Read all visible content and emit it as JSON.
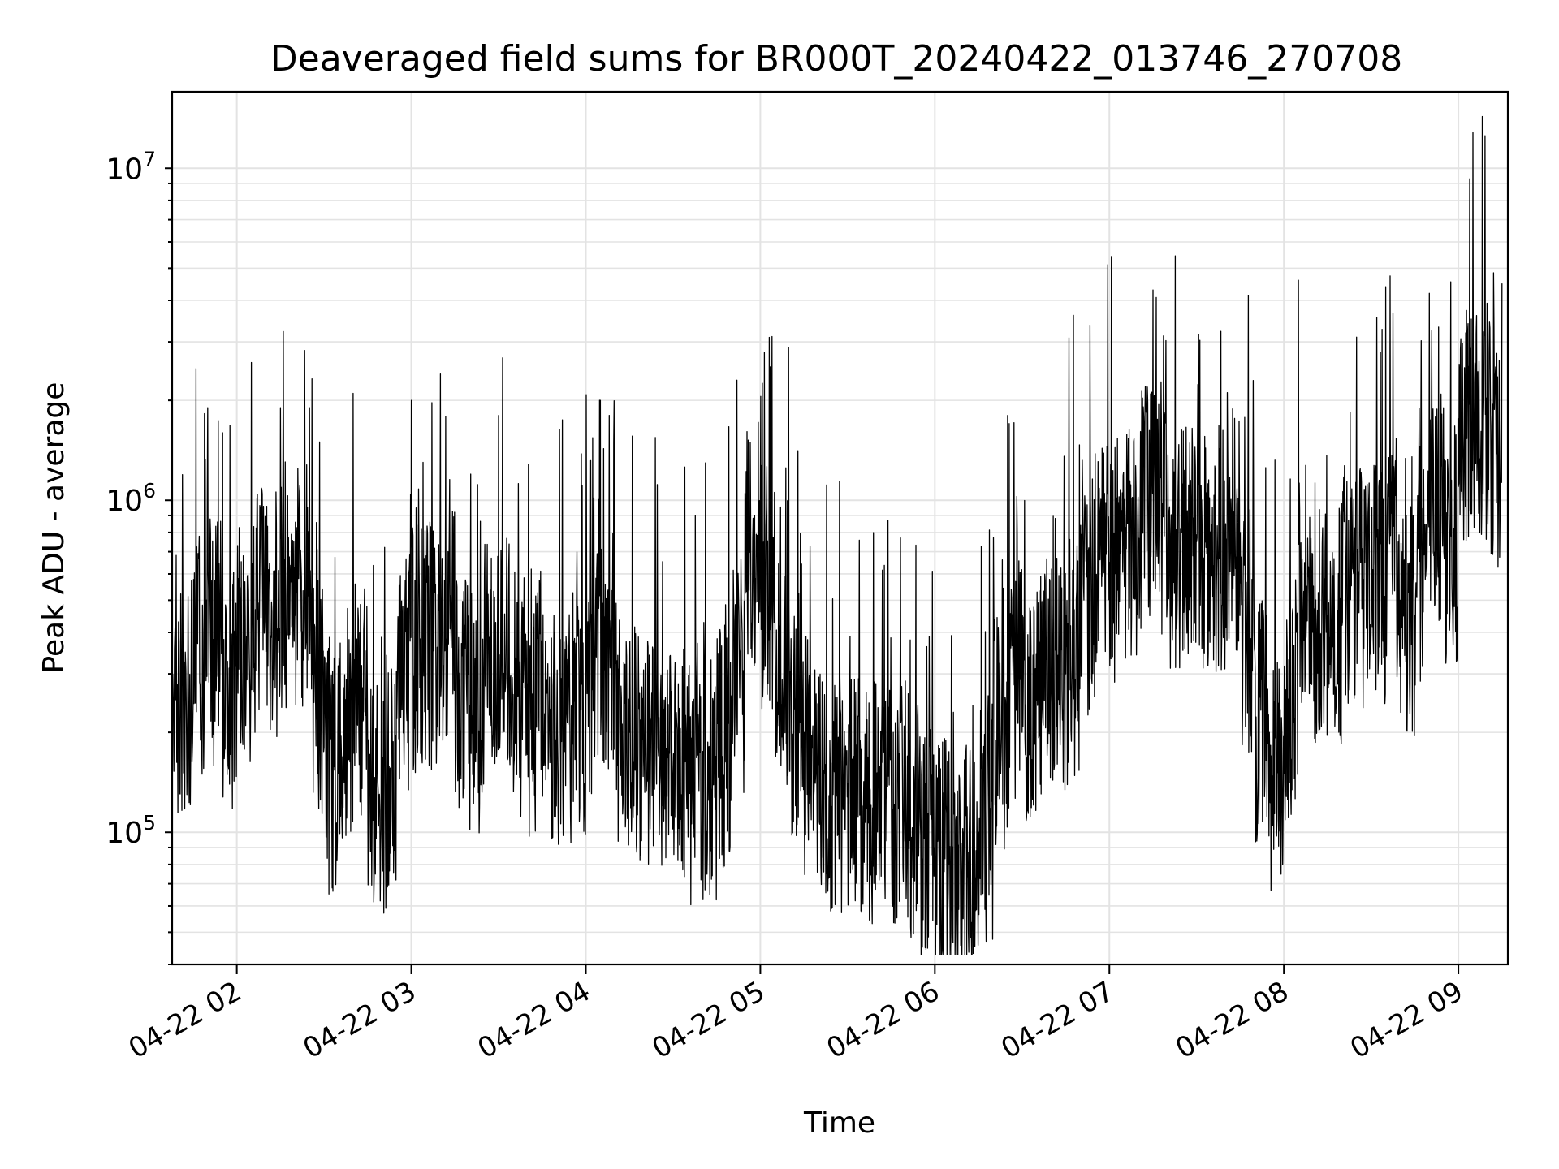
{
  "chart_data": {
    "type": "line",
    "title": "Deaveraged field sums for BR000T_20240422_013746_270708",
    "xlabel": "Time",
    "ylabel": "Peak ADU - average",
    "yscale": "log",
    "grid": true,
    "line_color": "#000000",
    "x_range": [
      "2024-04-22 01:37:46",
      "2024-04-22 09:17:00"
    ],
    "ylim": [
      40000,
      17000000
    ],
    "x_ticks": [
      {
        "t": "2024-04-22 02:00",
        "label": "04-22 02"
      },
      {
        "t": "2024-04-22 03:00",
        "label": "04-22 03"
      },
      {
        "t": "2024-04-22 04:00",
        "label": "04-22 04"
      },
      {
        "t": "2024-04-22 05:00",
        "label": "04-22 05"
      },
      {
        "t": "2024-04-22 06:00",
        "label": "04-22 06"
      },
      {
        "t": "2024-04-22 07:00",
        "label": "04-22 07"
      },
      {
        "t": "2024-04-22 08:00",
        "label": "04-22 08"
      },
      {
        "t": "2024-04-22 09:00",
        "label": "04-22 09"
      }
    ],
    "y_ticks": [
      {
        "value": 100000,
        "base": "10",
        "exp": "5"
      },
      {
        "value": 1000000,
        "base": "10",
        "exp": "6"
      },
      {
        "value": 10000000,
        "base": "10",
        "exp": "7"
      }
    ],
    "series": [
      {
        "points": [
          [
            "2024-04-22 01:38",
            300000
          ],
          [
            "2024-04-22 01:45",
            250000
          ],
          [
            "2024-04-22 01:50",
            1900000
          ],
          [
            "2024-04-22 01:55",
            280000
          ],
          [
            "2024-04-22 02:00",
            260000
          ],
          [
            "2024-04-22 02:05",
            2600000
          ],
          [
            "2024-04-22 02:10",
            350000
          ],
          [
            "2024-04-22 02:15",
            1900000
          ],
          [
            "2024-04-22 02:20",
            450000
          ],
          [
            "2024-04-22 02:25",
            1900000
          ],
          [
            "2024-04-22 02:30",
            180000
          ],
          [
            "2024-04-22 02:35",
            150000
          ],
          [
            "2024-04-22 02:40",
            2100000
          ],
          [
            "2024-04-22 02:45",
            180000
          ],
          [
            "2024-04-22 02:50",
            120000
          ],
          [
            "2024-04-22 02:55",
            220000
          ],
          [
            "2024-04-22 03:00",
            2000000
          ],
          [
            "2024-04-22 03:05",
            260000
          ],
          [
            "2024-04-22 03:10",
            2400000
          ],
          [
            "2024-04-22 03:15",
            300000
          ],
          [
            "2024-04-22 03:20",
            240000
          ],
          [
            "2024-04-22 03:25",
            230000
          ],
          [
            "2024-04-22 03:30",
            1800000
          ],
          [
            "2024-04-22 03:35",
            260000
          ],
          [
            "2024-04-22 03:40",
            280000
          ],
          [
            "2024-04-22 03:45",
            220000
          ],
          [
            "2024-04-22 03:50",
            210000
          ],
          [
            "2024-04-22 03:55",
            240000
          ],
          [
            "2024-04-22 04:00",
            220000
          ],
          [
            "2024-04-22 04:05",
            2000000
          ],
          [
            "2024-04-22 04:10",
            250000
          ],
          [
            "2024-04-22 04:15",
            200000
          ],
          [
            "2024-04-22 04:20",
            180000
          ],
          [
            "2024-04-22 04:25",
            170000
          ],
          [
            "2024-04-22 04:30",
            150000
          ],
          [
            "2024-04-22 04:35",
            160000
          ],
          [
            "2024-04-22 04:40",
            140000
          ],
          [
            "2024-04-22 04:45",
            170000
          ],
          [
            "2024-04-22 04:50",
            250000
          ],
          [
            "2024-04-22 04:55",
            700000
          ],
          [
            "2024-04-22 05:00",
            1000000
          ],
          [
            "2024-04-22 05:05",
            500000
          ],
          [
            "2024-04-22 05:10",
            300000
          ],
          [
            "2024-04-22 05:15",
            200000
          ],
          [
            "2024-04-22 05:20",
            160000
          ],
          [
            "2024-04-22 05:25",
            130000
          ],
          [
            "2024-04-22 05:30",
            140000
          ],
          [
            "2024-04-22 05:35",
            120000
          ],
          [
            "2024-04-22 05:40",
            130000
          ],
          [
            "2024-04-22 05:45",
            150000
          ],
          [
            "2024-04-22 05:50",
            120000
          ],
          [
            "2024-04-22 05:55",
            110000
          ],
          [
            "2024-04-22 06:00",
            90000
          ],
          [
            "2024-04-22 06:05",
            80000
          ],
          [
            "2024-04-22 06:10",
            90000
          ],
          [
            "2024-04-22 06:15",
            100000
          ],
          [
            "2024-04-22 06:20",
            130000
          ],
          [
            "2024-04-22 06:25",
            1800000
          ],
          [
            "2024-04-22 06:30",
            200000
          ],
          [
            "2024-04-22 06:35",
            250000
          ],
          [
            "2024-04-22 06:40",
            280000
          ],
          [
            "2024-04-22 06:45",
            300000
          ],
          [
            "2024-04-22 06:50",
            500000
          ],
          [
            "2024-04-22 06:55",
            700000
          ],
          [
            "2024-04-22 07:00",
            650000
          ],
          [
            "2024-04-22 07:05",
            700000
          ],
          [
            "2024-04-22 07:10",
            750000
          ],
          [
            "2024-04-22 07:15",
            4300000
          ],
          [
            "2024-04-22 07:20",
            700000
          ],
          [
            "2024-04-22 07:25",
            800000
          ],
          [
            "2024-04-22 07:30",
            750000
          ],
          [
            "2024-04-22 07:35",
            700000
          ],
          [
            "2024-04-22 07:40",
            850000
          ],
          [
            "2024-04-22 07:45",
            800000
          ],
          [
            "2024-04-22 07:50",
            350000
          ],
          [
            "2024-04-22 07:55",
            200000
          ],
          [
            "2024-04-22 08:00",
            150000
          ],
          [
            "2024-04-22 08:05",
            4600000
          ],
          [
            "2024-04-22 08:10",
            400000
          ],
          [
            "2024-04-22 08:15",
            450000
          ],
          [
            "2024-04-22 08:20",
            420000
          ],
          [
            "2024-04-22 08:25",
            3100000
          ],
          [
            "2024-04-22 08:30",
            400000
          ],
          [
            "2024-04-22 08:35",
            4400000
          ],
          [
            "2024-04-22 08:40",
            500000
          ],
          [
            "2024-04-22 08:45",
            450000
          ],
          [
            "2024-04-22 08:50",
            4200000
          ],
          [
            "2024-04-22 08:55",
            700000
          ],
          [
            "2024-04-22 09:00",
            1100000
          ],
          [
            "2024-04-22 09:05",
            12800000
          ],
          [
            "2024-04-22 09:10",
            1200000
          ],
          [
            "2024-04-22 09:15",
            4500000
          ]
        ]
      }
    ]
  }
}
